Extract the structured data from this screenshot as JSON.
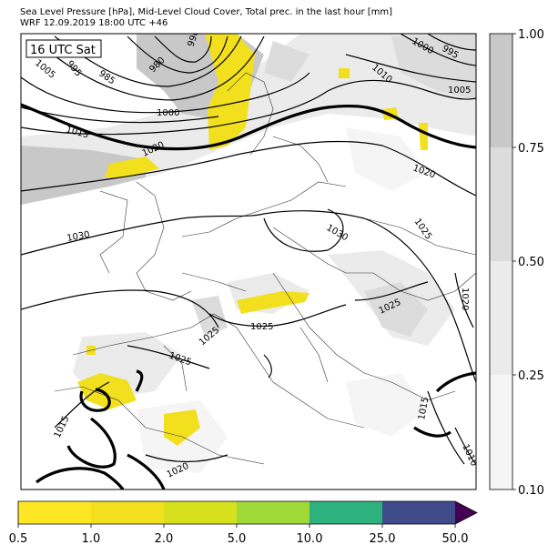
{
  "title_line1": "Sea Level Pressure [hPa], Mid-Level Cloud Cover, Total prec. in the last hour [mm]",
  "title_line2": "WRF 12.09.2019 18:00 UTC +46",
  "time_label": "16 UTC Sat",
  "isobar_labels": [
    "990",
    "985",
    "980",
    "1005",
    "995",
    "1000",
    "995",
    "1010",
    "1005",
    "1000",
    "1015",
    "1020",
    "1030",
    "1030",
    "1025",
    "1025",
    "1025",
    "1020",
    "1025",
    "1025",
    "1015",
    "1020",
    "1015",
    "1010",
    "1020"
  ],
  "cloud_colorbar": {
    "ticks": [
      "1.00",
      "0.75",
      "0.50",
      "0.25",
      "0.10"
    ],
    "colors": [
      "#c8c8c8",
      "#dcdcdc",
      "#ebebeb",
      "#f5f5f5"
    ]
  },
  "precip_colorbar": {
    "ticks": [
      "0.5",
      "1.0",
      "2.0",
      "5.0",
      "10.0",
      "25.0",
      "50.0"
    ],
    "colors": [
      "#fde725",
      "#f2e01f",
      "#d6e01c",
      "#a0da39",
      "#2db27d",
      "#3e4a89",
      "#440154"
    ]
  }
}
